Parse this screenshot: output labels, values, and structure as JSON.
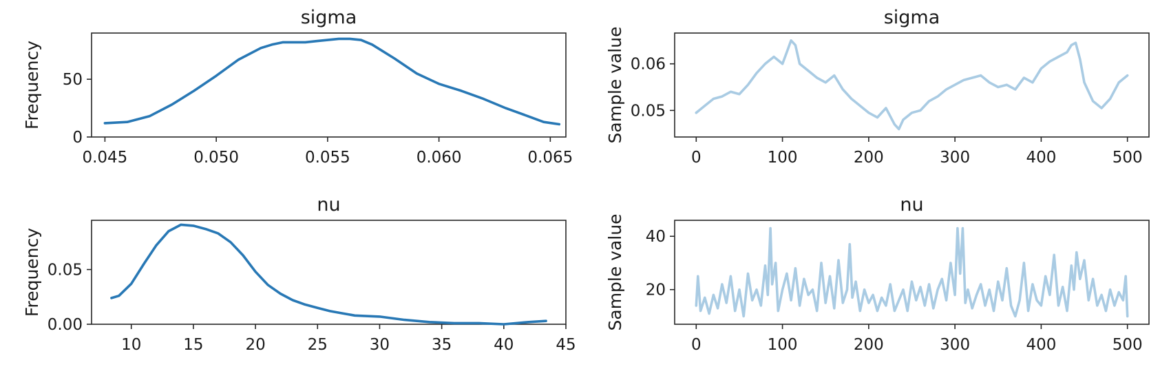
{
  "chart_data": [
    {
      "id": "kde_sigma",
      "type": "line",
      "title": "sigma",
      "xlabel": "",
      "ylabel": "Frequency",
      "xlim": [
        0.0444,
        0.0657
      ],
      "ylim": [
        0,
        90
      ],
      "xticks": [
        0.045,
        0.05,
        0.055,
        0.06,
        0.065
      ],
      "xtick_labels": [
        "0.045",
        "0.050",
        "0.055",
        "0.060",
        "0.065"
      ],
      "yticks": [
        0,
        50
      ],
      "ytick_labels": [
        "0",
        "50"
      ],
      "color": "#2878b5",
      "grid": false,
      "series": [
        {
          "x": [
            0.045,
            0.046,
            0.047,
            0.048,
            0.049,
            0.05,
            0.051,
            0.052,
            0.0525,
            0.053,
            0.0535,
            0.054,
            0.0545,
            0.055,
            0.0555,
            0.056,
            0.0565,
            0.057,
            0.058,
            0.059,
            0.06,
            0.061,
            0.062,
            0.063,
            0.064,
            0.0647,
            0.0654
          ],
          "y": [
            12,
            13,
            18,
            28,
            40,
            53,
            67,
            77,
            80,
            82,
            82,
            82,
            83,
            84,
            85,
            85,
            84,
            80,
            68,
            55,
            46,
            40,
            33,
            25,
            18,
            13,
            11
          ]
        }
      ]
    },
    {
      "id": "trace_sigma",
      "type": "line",
      "title": "sigma",
      "xlabel": "",
      "ylabel": "Sample value",
      "xlim": [
        -25,
        525
      ],
      "ylim": [
        0.0443,
        0.0666
      ],
      "xticks": [
        0,
        100,
        200,
        300,
        400,
        500
      ],
      "xtick_labels": [
        "0",
        "100",
        "200",
        "300",
        "400",
        "500"
      ],
      "yticks": [
        0.05,
        0.06
      ],
      "ytick_labels": [
        "0.05",
        "0.06"
      ],
      "color": "#a9cbe3",
      "grid": false,
      "series": [
        {
          "x": [
            0,
            10,
            20,
            30,
            40,
            50,
            60,
            70,
            80,
            90,
            100,
            105,
            110,
            115,
            120,
            130,
            140,
            150,
            160,
            170,
            180,
            190,
            200,
            210,
            220,
            230,
            235,
            240,
            250,
            260,
            270,
            280,
            290,
            300,
            310,
            320,
            330,
            340,
            350,
            360,
            370,
            380,
            390,
            400,
            410,
            420,
            430,
            435,
            440,
            445,
            450,
            460,
            470,
            480,
            490,
            500
          ],
          "y": [
            0.0495,
            0.051,
            0.0525,
            0.053,
            0.054,
            0.0535,
            0.0555,
            0.058,
            0.06,
            0.0615,
            0.06,
            0.0625,
            0.065,
            0.064,
            0.06,
            0.0585,
            0.057,
            0.056,
            0.0575,
            0.0545,
            0.0525,
            0.051,
            0.0495,
            0.0485,
            0.0505,
            0.047,
            0.046,
            0.048,
            0.0495,
            0.05,
            0.052,
            0.053,
            0.0545,
            0.0555,
            0.0565,
            0.057,
            0.0575,
            0.056,
            0.055,
            0.0555,
            0.0545,
            0.057,
            0.056,
            0.059,
            0.0605,
            0.0615,
            0.0625,
            0.064,
            0.0645,
            0.061,
            0.056,
            0.052,
            0.0505,
            0.0525,
            0.056,
            0.0575
          ]
        }
      ]
    },
    {
      "id": "kde_nu",
      "type": "line",
      "title": "nu",
      "xlabel": "",
      "ylabel": "Frequency",
      "xlim": [
        6.8,
        45.0
      ],
      "ylim": [
        0,
        0.095
      ],
      "xticks": [
        10,
        15,
        20,
        25,
        30,
        35,
        40,
        45
      ],
      "xtick_labels": [
        "10",
        "15",
        "20",
        "25",
        "30",
        "35",
        "40",
        "45"
      ],
      "yticks": [
        0.0,
        0.05
      ],
      "ytick_labels": [
        "0.00",
        "0.05"
      ],
      "color": "#2878b5",
      "grid": false,
      "series": [
        {
          "x": [
            8.4,
            9.0,
            10.0,
            11.0,
            12.0,
            13.0,
            14.0,
            15.0,
            16.0,
            17.0,
            18.0,
            19.0,
            20.0,
            21.0,
            22.0,
            23.0,
            24.0,
            25.0,
            26.0,
            27.0,
            28.0,
            30.0,
            32.0,
            34.0,
            36.0,
            38.0,
            40.0,
            41.0,
            42.0,
            43.4
          ],
          "y": [
            0.024,
            0.026,
            0.037,
            0.055,
            0.072,
            0.085,
            0.091,
            0.09,
            0.087,
            0.083,
            0.075,
            0.063,
            0.048,
            0.036,
            0.028,
            0.022,
            0.018,
            0.015,
            0.012,
            0.01,
            0.008,
            0.007,
            0.004,
            0.002,
            0.001,
            0.001,
            0.0,
            0.001,
            0.002,
            0.003
          ]
        }
      ]
    },
    {
      "id": "trace_nu",
      "type": "line",
      "title": "nu",
      "xlabel": "",
      "ylabel": "Sample value",
      "xlim": [
        -25,
        525
      ],
      "ylim": [
        7.0,
        46.0
      ],
      "xticks": [
        0,
        100,
        200,
        300,
        400,
        500
      ],
      "xtick_labels": [
        "0",
        "100",
        "200",
        "300",
        "400",
        "500"
      ],
      "yticks": [
        20,
        40
      ],
      "ytick_labels": [
        "20",
        "40"
      ],
      "color": "#a9cbe3",
      "grid": false,
      "series": [
        {
          "x": [
            0,
            2,
            5,
            10,
            15,
            20,
            25,
            30,
            35,
            40,
            45,
            50,
            55,
            60,
            65,
            70,
            75,
            80,
            83,
            86,
            88,
            92,
            95,
            100,
            105,
            110,
            115,
            120,
            125,
            130,
            135,
            140,
            145,
            150,
            155,
            160,
            165,
            170,
            175,
            178,
            181,
            185,
            190,
            195,
            200,
            205,
            210,
            215,
            220,
            225,
            230,
            235,
            240,
            245,
            250,
            255,
            260,
            265,
            270,
            275,
            280,
            285,
            290,
            295,
            300,
            303,
            306,
            309,
            312,
            315,
            320,
            325,
            330,
            335,
            340,
            345,
            350,
            355,
            360,
            365,
            370,
            375,
            380,
            385,
            390,
            395,
            400,
            405,
            410,
            415,
            420,
            425,
            430,
            435,
            438,
            441,
            445,
            450,
            455,
            460,
            465,
            470,
            475,
            480,
            485,
            490,
            495,
            498,
            500
          ],
          "y": [
            14,
            25,
            12,
            17,
            11,
            18,
            13,
            22,
            15,
            25,
            12,
            20,
            10,
            26,
            16,
            20,
            14,
            29,
            18,
            43,
            22,
            30,
            12,
            20,
            26,
            16,
            28,
            14,
            24,
            18,
            20,
            12,
            30,
            15,
            25,
            13,
            31,
            15,
            20,
            37,
            17,
            23,
            12,
            20,
            15,
            18,
            12,
            17,
            14,
            22,
            12,
            16,
            20,
            12,
            23,
            16,
            21,
            14,
            22,
            13,
            20,
            24,
            16,
            30,
            18,
            43,
            26,
            43,
            15,
            20,
            13,
            18,
            22,
            14,
            20,
            12,
            23,
            16,
            28,
            14,
            10,
            16,
            30,
            12,
            22,
            16,
            14,
            25,
            18,
            33,
            14,
            21,
            12,
            29,
            20,
            34,
            24,
            31,
            16,
            24,
            14,
            18,
            12,
            20,
            14,
            19,
            16,
            25,
            10
          ]
        }
      ]
    }
  ]
}
